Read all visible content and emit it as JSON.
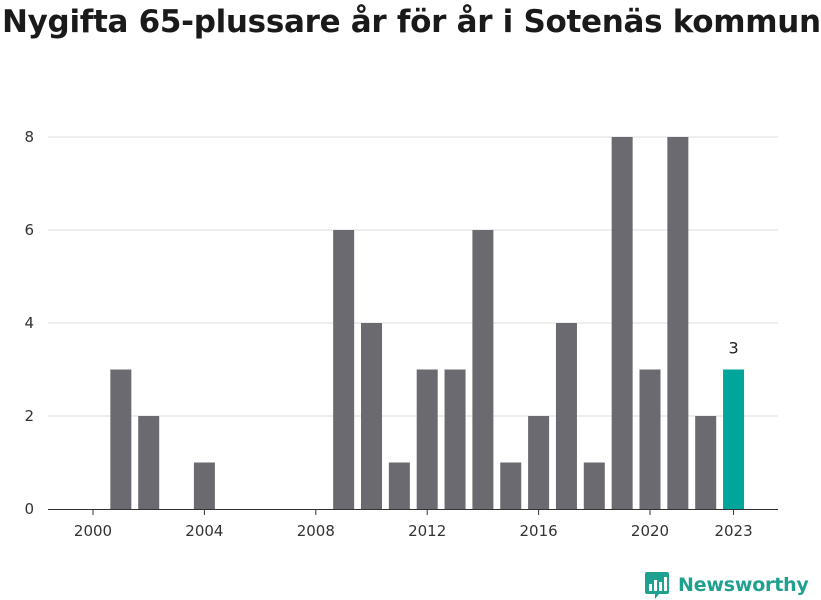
{
  "title": "Nygifta 65-plussare år för år i Sotenäs kommun",
  "brand": "Newsworthy",
  "colors": {
    "bar": "#6b6a70",
    "highlight": "#00a59b",
    "grid": "#dddddd",
    "brand": "#20a08f"
  },
  "chart_data": {
    "type": "bar",
    "title": "Nygifta 65-plussare år för år i Sotenäs kommun",
    "categories": [
      2000,
      2001,
      2002,
      2003,
      2004,
      2005,
      2006,
      2007,
      2008,
      2009,
      2010,
      2011,
      2012,
      2013,
      2014,
      2015,
      2016,
      2017,
      2018,
      2019,
      2020,
      2021,
      2022,
      2023
    ],
    "values": [
      0,
      3,
      2,
      0,
      1,
      0,
      0,
      0,
      0,
      6,
      4,
      1,
      3,
      3,
      6,
      1,
      2,
      4,
      1,
      8,
      3,
      8,
      2,
      3
    ],
    "highlight_category": 2023,
    "highlight_label": "3",
    "x_ticks": [
      "2000",
      "2004",
      "2008",
      "2012",
      "2016",
      "2020",
      "2023"
    ],
    "y_ticks": [
      0,
      2,
      4,
      6,
      8
    ],
    "ylim": [
      0,
      8
    ],
    "xlabel": "",
    "ylabel": "",
    "grid": true
  }
}
